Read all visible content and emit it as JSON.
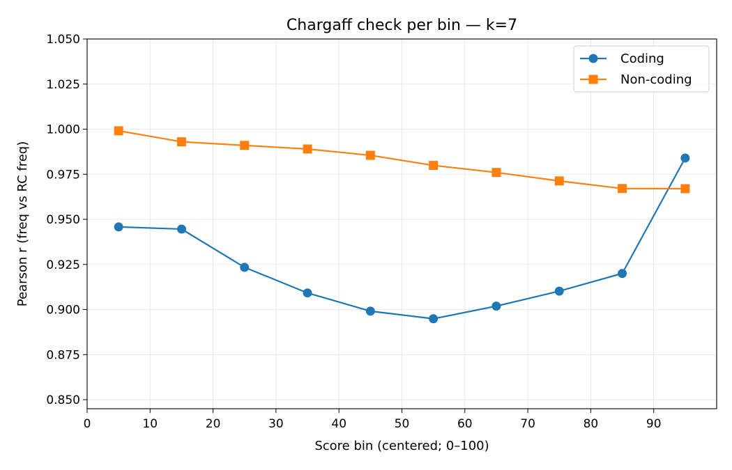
{
  "chart_data": {
    "type": "line",
    "title": "Chargaff check per bin — k=7",
    "xlabel": "Score bin (centered; 0–100)",
    "ylabel": "Pearson r (freq vs RC freq)",
    "xlim": [
      0,
      100
    ],
    "ylim": [
      0.845,
      1.05
    ],
    "xticks": [
      "0",
      "10",
      "20",
      "30",
      "40",
      "50",
      "60",
      "70",
      "80",
      "90"
    ],
    "yticks": [
      "0.850",
      "0.875",
      "0.900",
      "0.925",
      "0.950",
      "0.975",
      "1.000",
      "1.025",
      "1.050"
    ],
    "grid": true,
    "legend_position": "top-right",
    "x": [
      5,
      15,
      25,
      35,
      45,
      55,
      65,
      75,
      85,
      95
    ],
    "series": [
      {
        "name": "Coding",
        "color": "#1f77b4",
        "marker": "circle",
        "values": [
          0.9458,
          0.9446,
          0.9234,
          0.9092,
          0.8991,
          0.8949,
          0.9019,
          0.9102,
          0.92,
          0.984
        ]
      },
      {
        "name": "Non-coding",
        "color": "#ff7f0e",
        "marker": "square",
        "values": [
          0.9991,
          0.993,
          0.991,
          0.989,
          0.9855,
          0.9799,
          0.976,
          0.9713,
          0.9671,
          0.967
        ]
      }
    ]
  }
}
